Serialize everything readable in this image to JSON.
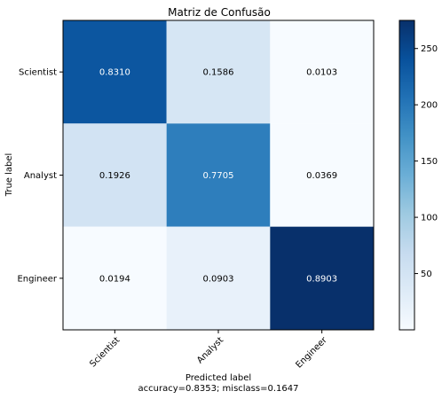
{
  "chart_data": {
    "type": "heatmap",
    "title": "Matriz de Confusão",
    "xlabel": "Predicted label",
    "xlabel_sub": "accuracy=0.8353; misclass=0.1647",
    "ylabel": "True label",
    "x_categories": [
      "Scientist",
      "Analyst",
      "Engineer"
    ],
    "y_categories": [
      "Scientist",
      "Analyst",
      "Engineer"
    ],
    "values": [
      [
        0.831,
        0.1586,
        0.0103
      ],
      [
        0.1926,
        0.7705,
        0.0369
      ],
      [
        0.0194,
        0.0903,
        0.8903
      ]
    ],
    "value_labels": [
      [
        "0.8310",
        "0.1586",
        "0.0103"
      ],
      [
        "0.1926",
        "0.7705",
        "0.0369"
      ],
      [
        "0.0194",
        "0.0903",
        "0.8903"
      ]
    ],
    "colorbar": {
      "colormap": "Blues",
      "range": [
        0,
        275
      ],
      "ticks": [
        50,
        100,
        150,
        200,
        250
      ],
      "tick_labels": [
        "50",
        "100",
        "150",
        "200",
        "250"
      ]
    },
    "cell_colors": [
      [
        "#0c56a0",
        "#d6e6f4",
        "#f7fbff"
      ],
      [
        "#d2e3f3",
        "#2e7ebc",
        "#f7fbff"
      ],
      [
        "#f7fbff",
        "#e8f1fa",
        "#08306b"
      ]
    ],
    "text_colors": [
      [
        "#ffffff",
        "#000000",
        "#000000"
      ],
      [
        "#000000",
        "#ffffff",
        "#000000"
      ],
      [
        "#000000",
        "#000000",
        "#ffffff"
      ]
    ]
  }
}
